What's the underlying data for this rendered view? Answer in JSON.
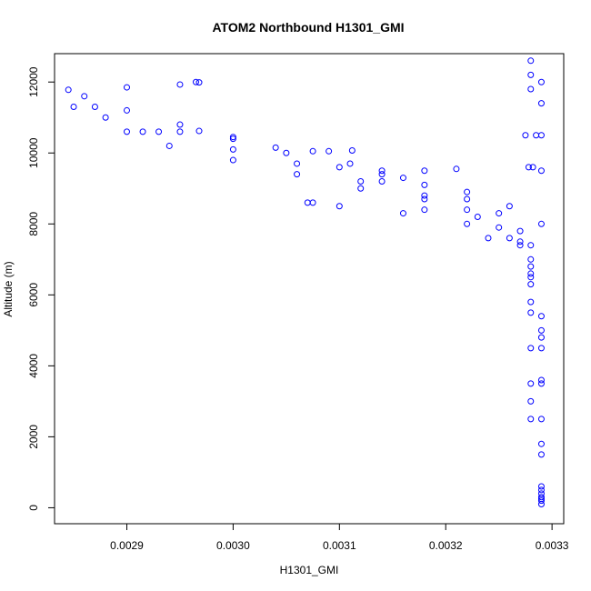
{
  "chart_data": {
    "type": "scatter",
    "title": "ATOM2 Northbound H1301_GMI",
    "xlabel": "H1301_GMI",
    "ylabel": "Altitude (m)",
    "xlim": [
      0.002832,
      0.003311
    ],
    "ylim": [
      -450,
      12800
    ],
    "x_ticks": [
      {
        "value": 0.0029,
        "label": "0.0029"
      },
      {
        "value": 0.003,
        "label": "0.0030"
      },
      {
        "value": 0.0031,
        "label": "0.0031"
      },
      {
        "value": 0.0032,
        "label": "0.0032"
      },
      {
        "value": 0.0033,
        "label": "0.0033"
      }
    ],
    "y_ticks": [
      {
        "value": 0,
        "label": "0"
      },
      {
        "value": 2000,
        "label": "2000"
      },
      {
        "value": 4000,
        "label": "4000"
      },
      {
        "value": 6000,
        "label": "6000"
      },
      {
        "value": 8000,
        "label": "8000"
      },
      {
        "value": 10000,
        "label": "10000"
      },
      {
        "value": 12000,
        "label": "12000"
      }
    ],
    "grid": false,
    "legend": "none",
    "marker": "open-circle",
    "color": "#0000ff",
    "series": [
      {
        "points": [
          [
            0.00329,
            100
          ],
          [
            0.00329,
            600
          ],
          [
            0.00329,
            1500
          ],
          [
            0.00328,
            2500
          ],
          [
            0.00328,
            3500
          ],
          [
            0.00328,
            4500
          ],
          [
            0.00328,
            5500
          ],
          [
            0.00328,
            6300
          ],
          [
            0.00328,
            7000
          ],
          [
            0.00327,
            7500
          ],
          [
            0.00325,
            7900
          ],
          [
            0.00322,
            8400
          ],
          [
            0.00318,
            8800
          ],
          [
            0.00314,
            9200
          ],
          [
            0.0031,
            9600
          ],
          [
            0.00305,
            10000
          ],
          [
            0.003,
            10400
          ],
          [
            0.00295,
            10800
          ],
          [
            0.0029,
            11200
          ],
          [
            0.00286,
            11600
          ],
          [
            0.002845,
            11780
          ],
          [
            0.0029,
            11850
          ],
          [
            0.00295,
            11930
          ],
          [
            0.002965,
            12000
          ],
          [
            0.002968,
            11990
          ]
        ]
      },
      {
        "points": [
          [
            0.00329,
            200
          ],
          [
            0.00329,
            1800
          ],
          [
            0.00329,
            3600
          ],
          [
            0.00329,
            5400
          ],
          [
            0.00328,
            6800
          ],
          [
            0.00326,
            7600
          ],
          [
            0.00322,
            8000
          ],
          [
            0.00316,
            8300
          ],
          [
            0.0031,
            8500
          ],
          [
            0.003075,
            8600
          ],
          [
            0.00307,
            8600
          ]
        ]
      },
      {
        "points": [
          [
            0.00329,
            300
          ],
          [
            0.00329,
            2500
          ],
          [
            0.00329,
            4800
          ],
          [
            0.00328,
            6600
          ],
          [
            0.00324,
            7600
          ],
          [
            0.00318,
            8400
          ],
          [
            0.00312,
            9000
          ],
          [
            0.00306,
            9400
          ],
          [
            0.003,
            9800
          ],
          [
            0.00294,
            10200
          ],
          [
            0.002915,
            10600
          ],
          [
            0.0029,
            10600
          ],
          [
            0.00295,
            10600
          ],
          [
            0.002968,
            10620
          ]
        ]
      },
      {
        "points": [
          [
            0.00329,
            250
          ],
          [
            0.00328,
            3000
          ],
          [
            0.00328,
            5800
          ],
          [
            0.00327,
            7400
          ],
          [
            0.00323,
            8200
          ],
          [
            0.00318,
            8700
          ],
          [
            0.00312,
            9200
          ],
          [
            0.00306,
            9700
          ],
          [
            0.003,
            10100
          ],
          [
            0.00293,
            10600
          ],
          [
            0.00288,
            11000
          ],
          [
            0.00285,
            11300
          ],
          [
            0.00287,
            11300
          ]
        ]
      },
      {
        "points": [
          [
            0.00329,
            400
          ],
          [
            0.00329,
            3500
          ],
          [
            0.00328,
            6500
          ],
          [
            0.00327,
            7800
          ],
          [
            0.00325,
            8300
          ],
          [
            0.00322,
            8700
          ],
          [
            0.00318,
            9100
          ],
          [
            0.00314,
            9400
          ],
          [
            0.00314,
            9500
          ],
          [
            0.00318,
            9500
          ],
          [
            0.00321,
            9550
          ]
        ]
      },
      {
        "points": [
          [
            0.00329,
            500
          ],
          [
            0.00329,
            4500
          ],
          [
            0.00328,
            7400
          ],
          [
            0.00326,
            8500
          ],
          [
            0.00322,
            8900
          ],
          [
            0.00316,
            9300
          ],
          [
            0.00311,
            9700
          ],
          [
            0.003075,
            10050
          ],
          [
            0.00309,
            10050
          ],
          [
            0.003112,
            10070
          ],
          [
            0.00304,
            10150
          ],
          [
            0.003,
            10450
          ]
        ]
      },
      {
        "points": [
          [
            0.00329,
            5000
          ],
          [
            0.00329,
            8000
          ],
          [
            0.00329,
            9500
          ],
          [
            0.00329,
            10500
          ],
          [
            0.00329,
            11400
          ],
          [
            0.00328,
            11800
          ],
          [
            0.00329,
            12000
          ],
          [
            0.00328,
            12200
          ],
          [
            0.00328,
            12600
          ],
          [
            0.003275,
            10500
          ],
          [
            0.003285,
            10500
          ],
          [
            0.003278,
            9600
          ],
          [
            0.003282,
            9600
          ]
        ]
      }
    ]
  }
}
